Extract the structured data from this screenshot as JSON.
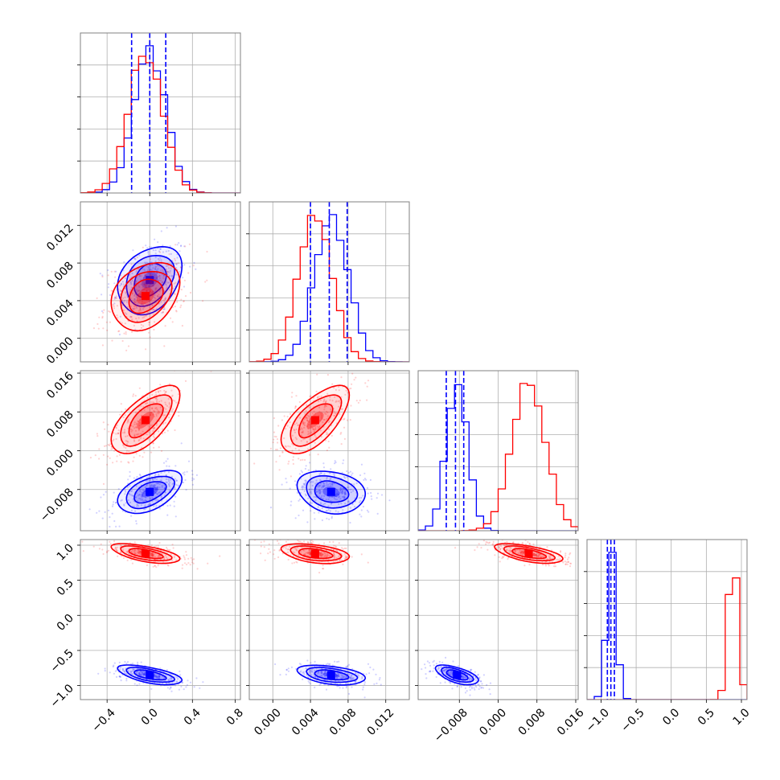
{
  "chart_data": {
    "type": "corner",
    "series": [
      {
        "name": "",
        "color": "#0000ff"
      },
      {
        "name": "",
        "color": "#ff0000"
      }
    ],
    "dims": [
      {
        "range": [
          -0.65,
          0.85
        ],
        "ticks": [
          -0.4,
          0.0,
          0.4,
          0.8
        ],
        "tick_labels": [
          "−0.4",
          "0.0",
          "0.4",
          "0.8"
        ],
        "blue": {
          "mean": 0.0,
          "sd": 0.15,
          "quantiles": [
            -0.17,
            0.0,
            0.15
          ]
        },
        "red": {
          "mean": -0.04,
          "sd": 0.16
        }
      },
      {
        "range": [
          -0.0025,
          0.0145
        ],
        "ticks": [
          0.0,
          0.004,
          0.008,
          0.012
        ],
        "tick_labels": [
          "0.000",
          "0.004",
          "0.008",
          "0.012"
        ],
        "blue": {
          "mean": 0.0062,
          "sd": 0.0018,
          "quantiles": [
            0.004,
            0.006,
            0.0079
          ]
        },
        "red": {
          "mean": 0.0045,
          "sd": 0.0018
        }
      },
      {
        "range": [
          -0.0165,
          0.0165
        ],
        "ticks": [
          -0.008,
          0.0,
          0.008,
          0.016
        ],
        "tick_labels": [
          "−0.008",
          "0.000",
          "0.008",
          "0.016"
        ],
        "blue": {
          "mean": -0.0085,
          "sd": 0.0022,
          "quantiles": [
            -0.0107,
            -0.0088,
            -0.0071
          ]
        },
        "red": {
          "mean": 0.0063,
          "sd": 0.0035
        }
      },
      {
        "range": [
          -1.2,
          1.08
        ],
        "ticks": [
          -1.0,
          -0.5,
          0.0,
          0.5,
          1.0
        ],
        "tick_labels": [
          "−1.0",
          "−0.5",
          "0.0",
          "0.5",
          "1.0"
        ],
        "blue": {
          "mean": -0.85,
          "sd": 0.07,
          "quantiles": [
            -0.91,
            -0.86,
            -0.81
          ]
        },
        "red": {
          "mean": 0.88,
          "sd": 0.07
        }
      }
    ],
    "correlations": {
      "1,0": {
        "blue": 0.3,
        "red": 0.3
      },
      "2,0": {
        "blue": 0.5,
        "red": 0.65
      },
      "2,1": {
        "blue": -0.2,
        "red": 0.65
      },
      "3,0": {
        "blue": -0.6,
        "red": -0.6
      },
      "3,1": {
        "blue": -0.4,
        "red": -0.4
      },
      "3,2": {
        "blue": -0.6,
        "red": -0.6
      }
    },
    "grid": true
  }
}
